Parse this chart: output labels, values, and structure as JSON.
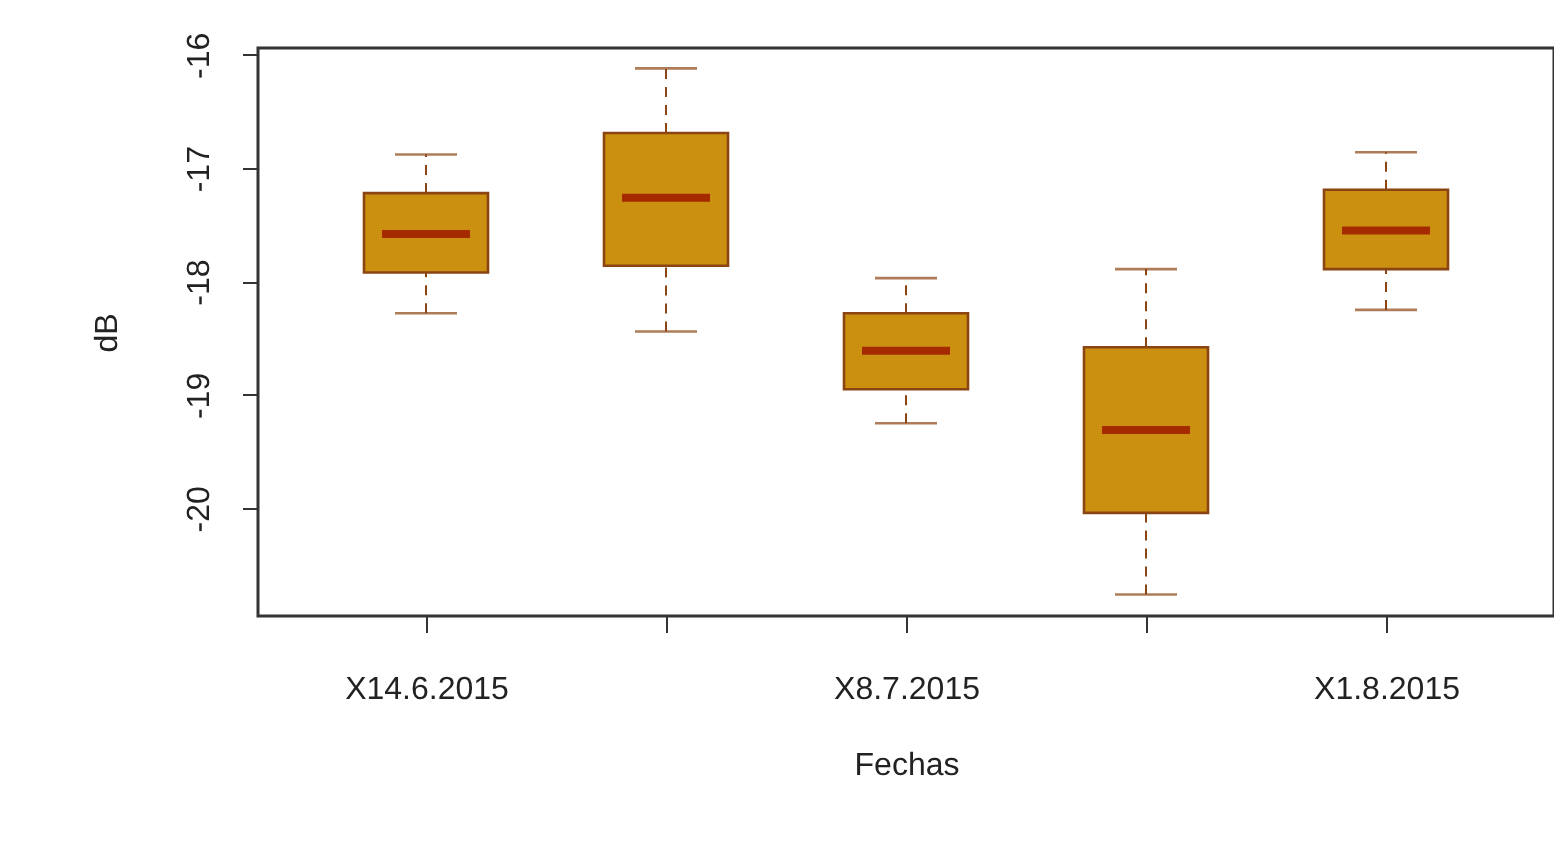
{
  "chart_data": {
    "type": "box",
    "xlabel": "Fechas",
    "ylabel": "dB",
    "categories": [
      "X14.6.2015",
      null,
      "X8.7.2015",
      null,
      "X1.8.2015"
    ],
    "ylim": [
      -20.95,
      -15.94
    ],
    "yticks": [
      -20,
      -19,
      -18,
      -17,
      -16
    ],
    "series": [
      {
        "color": "#cc9010",
        "boxes": [
          {
            "low": -18.28,
            "q1": -17.92,
            "median": -17.58,
            "q3": -17.22,
            "high": -16.88
          },
          {
            "low": -18.44,
            "q1": -17.86,
            "median": -17.26,
            "q3": -16.69,
            "high": -16.12
          },
          {
            "low": -19.25,
            "q1": -18.95,
            "median": -18.61,
            "q3": -18.28,
            "high": -17.97
          },
          {
            "low": -20.76,
            "q1": -20.04,
            "median": -19.31,
            "q3": -18.58,
            "high": -17.89
          },
          {
            "low": -18.25,
            "q1": -17.89,
            "median": -17.55,
            "q3": -17.19,
            "high": -16.86
          }
        ]
      }
    ]
  }
}
